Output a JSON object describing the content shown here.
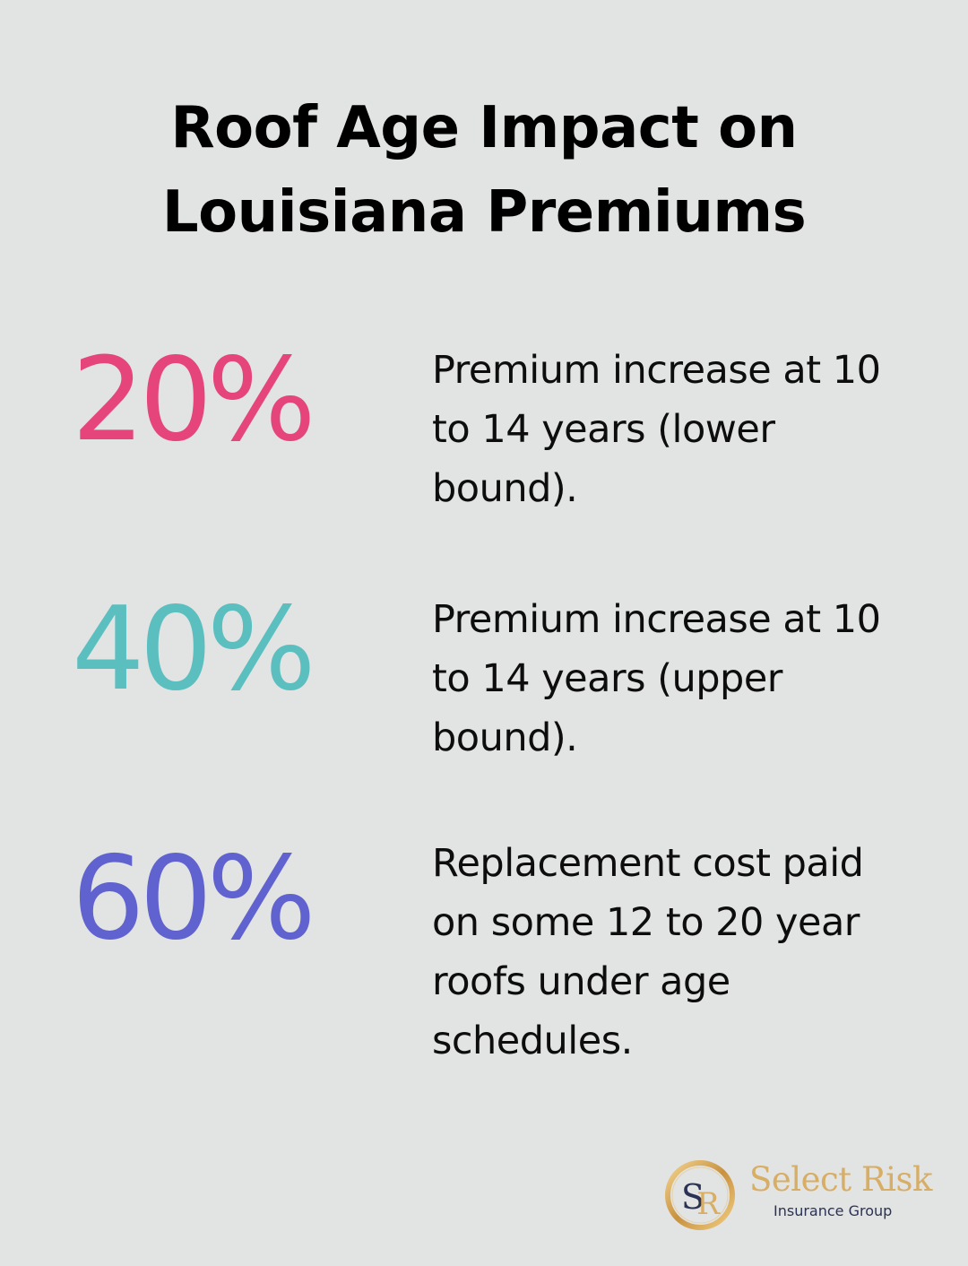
{
  "title": {
    "line1": "Roof Age Impact on",
    "line2": "Louisiana Premiums"
  },
  "stats": [
    {
      "value": "20%",
      "color": "#e6457b",
      "description": [
        "Premium increase at 10",
        "to 14 years (lower",
        "bound)."
      ]
    },
    {
      "value": "40%",
      "color": "#5bbfc0",
      "description": [
        "Premium increase at 10",
        "to 14 years (upper",
        "bound)."
      ]
    },
    {
      "value": "60%",
      "color": "#6062cf",
      "description": [
        "Replacement cost paid",
        "on some 12 to 20 year",
        "roofs under age",
        "schedules."
      ]
    }
  ],
  "logo": {
    "monogram": "SR",
    "name": "Select Risk",
    "subtitle": "Insurance Group",
    "gold": "#d8ad64",
    "navy": "#2b3253"
  }
}
